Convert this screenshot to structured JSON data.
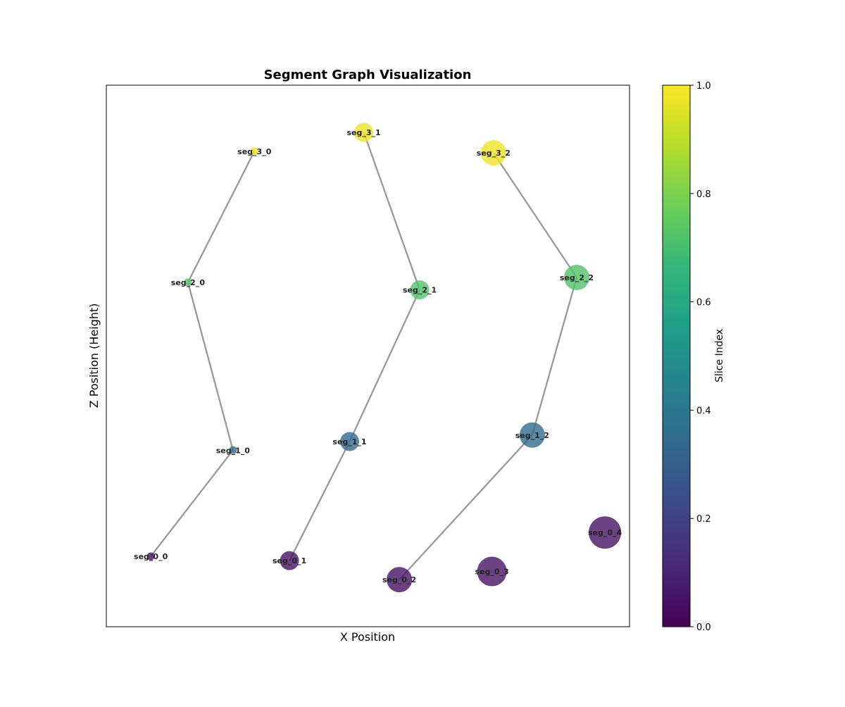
{
  "chart_data": {
    "type": "scatter",
    "title": "Segment Graph Visualization",
    "xlabel": "X Position",
    "ylabel": "Z Position (Height)",
    "x_ticks_visible": false,
    "y_ticks_visible": false,
    "grid": false,
    "xlim": [
      0,
      100
    ],
    "ylim": [
      0,
      100
    ],
    "nodes": [
      {
        "id": "seg_0_0",
        "x": 8.5,
        "y": 13.0,
        "slice": 0.05,
        "size": 1
      },
      {
        "id": "seg_0_1",
        "x": 35.0,
        "y": 12.2,
        "slice": 0.05,
        "size": 3
      },
      {
        "id": "seg_0_2",
        "x": 56.0,
        "y": 8.7,
        "slice": 0.05,
        "size": 4
      },
      {
        "id": "seg_0_3",
        "x": 73.7,
        "y": 10.2,
        "slice": 0.05,
        "size": 5
      },
      {
        "id": "seg_0_4",
        "x": 95.3,
        "y": 17.4,
        "slice": 0.05,
        "size": 6
      },
      {
        "id": "seg_1_0",
        "x": 24.2,
        "y": 32.6,
        "slice": 0.35,
        "size": 1
      },
      {
        "id": "seg_1_1",
        "x": 46.5,
        "y": 34.2,
        "slice": 0.35,
        "size": 3
      },
      {
        "id": "seg_1_2",
        "x": 81.4,
        "y": 35.4,
        "slice": 0.35,
        "size": 4
      },
      {
        "id": "seg_2_0",
        "x": 15.6,
        "y": 63.6,
        "slice": 0.72,
        "size": 1
      },
      {
        "id": "seg_2_1",
        "x": 59.9,
        "y": 62.2,
        "slice": 0.72,
        "size": 3
      },
      {
        "id": "seg_2_2",
        "x": 89.9,
        "y": 64.5,
        "slice": 0.72,
        "size": 4
      },
      {
        "id": "seg_3_0",
        "x": 28.3,
        "y": 87.8,
        "slice": 0.98,
        "size": 1
      },
      {
        "id": "seg_3_1",
        "x": 49.2,
        "y": 91.3,
        "slice": 0.98,
        "size": 3
      },
      {
        "id": "seg_3_2",
        "x": 74.0,
        "y": 87.5,
        "slice": 0.98,
        "size": 4
      }
    ],
    "edges": [
      [
        "seg_0_0",
        "seg_1_0"
      ],
      [
        "seg_1_0",
        "seg_2_0"
      ],
      [
        "seg_2_0",
        "seg_3_0"
      ],
      [
        "seg_0_1",
        "seg_1_1"
      ],
      [
        "seg_1_1",
        "seg_2_1"
      ],
      [
        "seg_2_1",
        "seg_3_1"
      ],
      [
        "seg_0_2",
        "seg_1_2"
      ],
      [
        "seg_1_2",
        "seg_2_2"
      ],
      [
        "seg_2_2",
        "seg_3_2"
      ]
    ],
    "colorbar": {
      "label": "Slice Index",
      "colormap": "viridis",
      "range": [
        0,
        1
      ],
      "ticks": [
        "0.0",
        "0.2",
        "0.4",
        "0.6",
        "0.8",
        "1.0"
      ]
    },
    "colors": {
      "edge": "#999999",
      "viridis_stops": [
        "#440154",
        "#482878",
        "#3e4989",
        "#31688e",
        "#26828e",
        "#1f9e89",
        "#35b779",
        "#6ece58",
        "#b5de2b",
        "#fde725"
      ]
    }
  }
}
